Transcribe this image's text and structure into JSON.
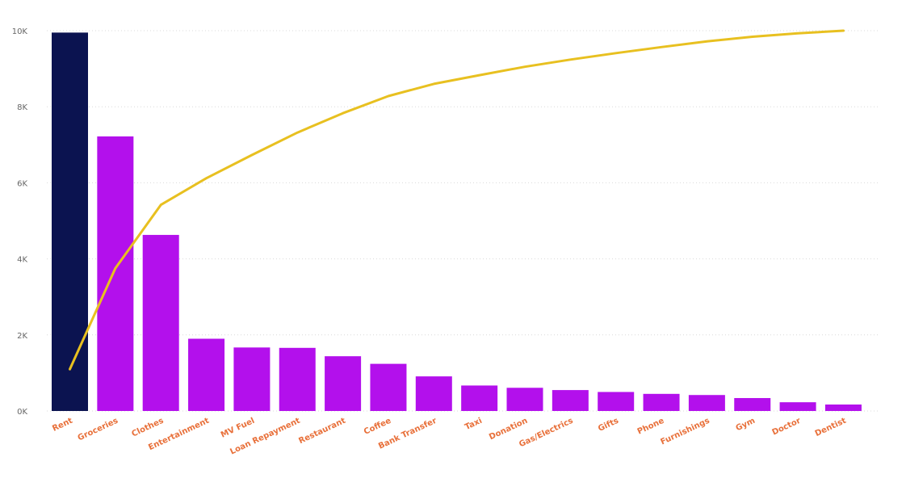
{
  "chart_data": {
    "type": "bar",
    "categories": [
      "Rent",
      "Groceries",
      "Clothes",
      "Entertainment",
      "MV Fuel",
      "Loan Repayment",
      "Restaurant",
      "Coffee",
      "Bank Transfer",
      "Taxi",
      "Donation",
      "Gas/Electrics",
      "Gifts",
      "Phone",
      "Furnishings",
      "Gym",
      "Doctor",
      "Dentist"
    ],
    "series": [
      {
        "type": "bar",
        "values": [
          9950,
          7220,
          4630,
          1900,
          1670,
          1660,
          1440,
          1240,
          910,
          670,
          610,
          550,
          500,
          450,
          420,
          340,
          230,
          170
        ]
      },
      {
        "type": "line",
        "values": [
          1100,
          3750,
          5420,
          6120,
          6730,
          7320,
          7830,
          8280,
          8600,
          8830,
          9050,
          9240,
          9410,
          9570,
          9720,
          9840,
          9930,
          10000
        ]
      }
    ],
    "y_ticks": [
      "0K",
      "2K",
      "4K",
      "6K",
      "8K",
      "10K"
    ],
    "ylim": [
      0,
      10000
    ],
    "grid": true,
    "colors": {
      "highlight_bar": "#0B1350",
      "bar": "#B310EC",
      "line": "#E8C020",
      "x_labels": "#E8703A",
      "y_labels": "#666666"
    }
  }
}
